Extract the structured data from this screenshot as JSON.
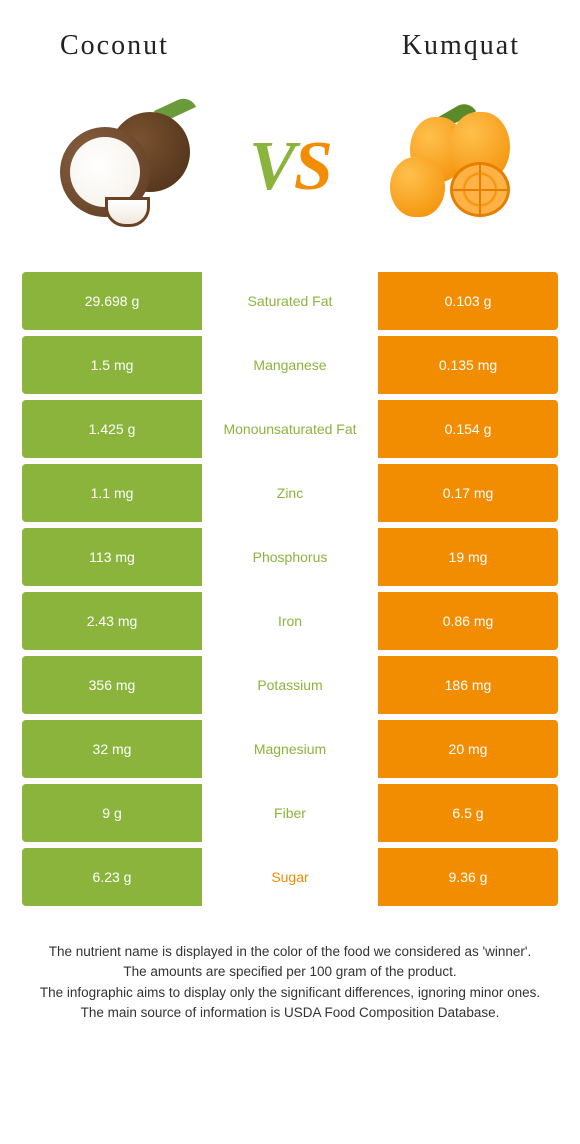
{
  "header": {
    "left_title": "Coconut",
    "right_title": "Kumquat"
  },
  "vs": {
    "v": "V",
    "s": "S"
  },
  "colors": {
    "left_cell": "#8bb43c",
    "right_cell": "#f28c00",
    "winner_left_text": "#8bb43c",
    "winner_right_text": "#f28c00"
  },
  "rows": [
    {
      "label": "Saturated Fat",
      "left": "29.698 g",
      "right": "0.103 g",
      "winner": "left"
    },
    {
      "label": "Manganese",
      "left": "1.5 mg",
      "right": "0.135 mg",
      "winner": "left"
    },
    {
      "label": "Monounsaturated Fat",
      "left": "1.425 g",
      "right": "0.154 g",
      "winner": "left"
    },
    {
      "label": "Zinc",
      "left": "1.1 mg",
      "right": "0.17 mg",
      "winner": "left"
    },
    {
      "label": "Phosphorus",
      "left": "113 mg",
      "right": "19 mg",
      "winner": "left"
    },
    {
      "label": "Iron",
      "left": "2.43 mg",
      "right": "0.86 mg",
      "winner": "left"
    },
    {
      "label": "Potassium",
      "left": "356 mg",
      "right": "186 mg",
      "winner": "left"
    },
    {
      "label": "Magnesium",
      "left": "32 mg",
      "right": "20 mg",
      "winner": "left"
    },
    {
      "label": "Fiber",
      "left": "9 g",
      "right": "6.5 g",
      "winner": "left"
    },
    {
      "label": "Sugar",
      "left": "6.23 g",
      "right": "9.36 g",
      "winner": "right"
    }
  ],
  "footer": {
    "line1": "The nutrient name is displayed in the color of the food we considered as 'winner'.",
    "line2": "The amounts are specified per 100 gram of the product.",
    "line3": "The infographic aims to display only the significant differences, ignoring minor ones.",
    "line4": "The main source of information is USDA Food Composition Database."
  }
}
